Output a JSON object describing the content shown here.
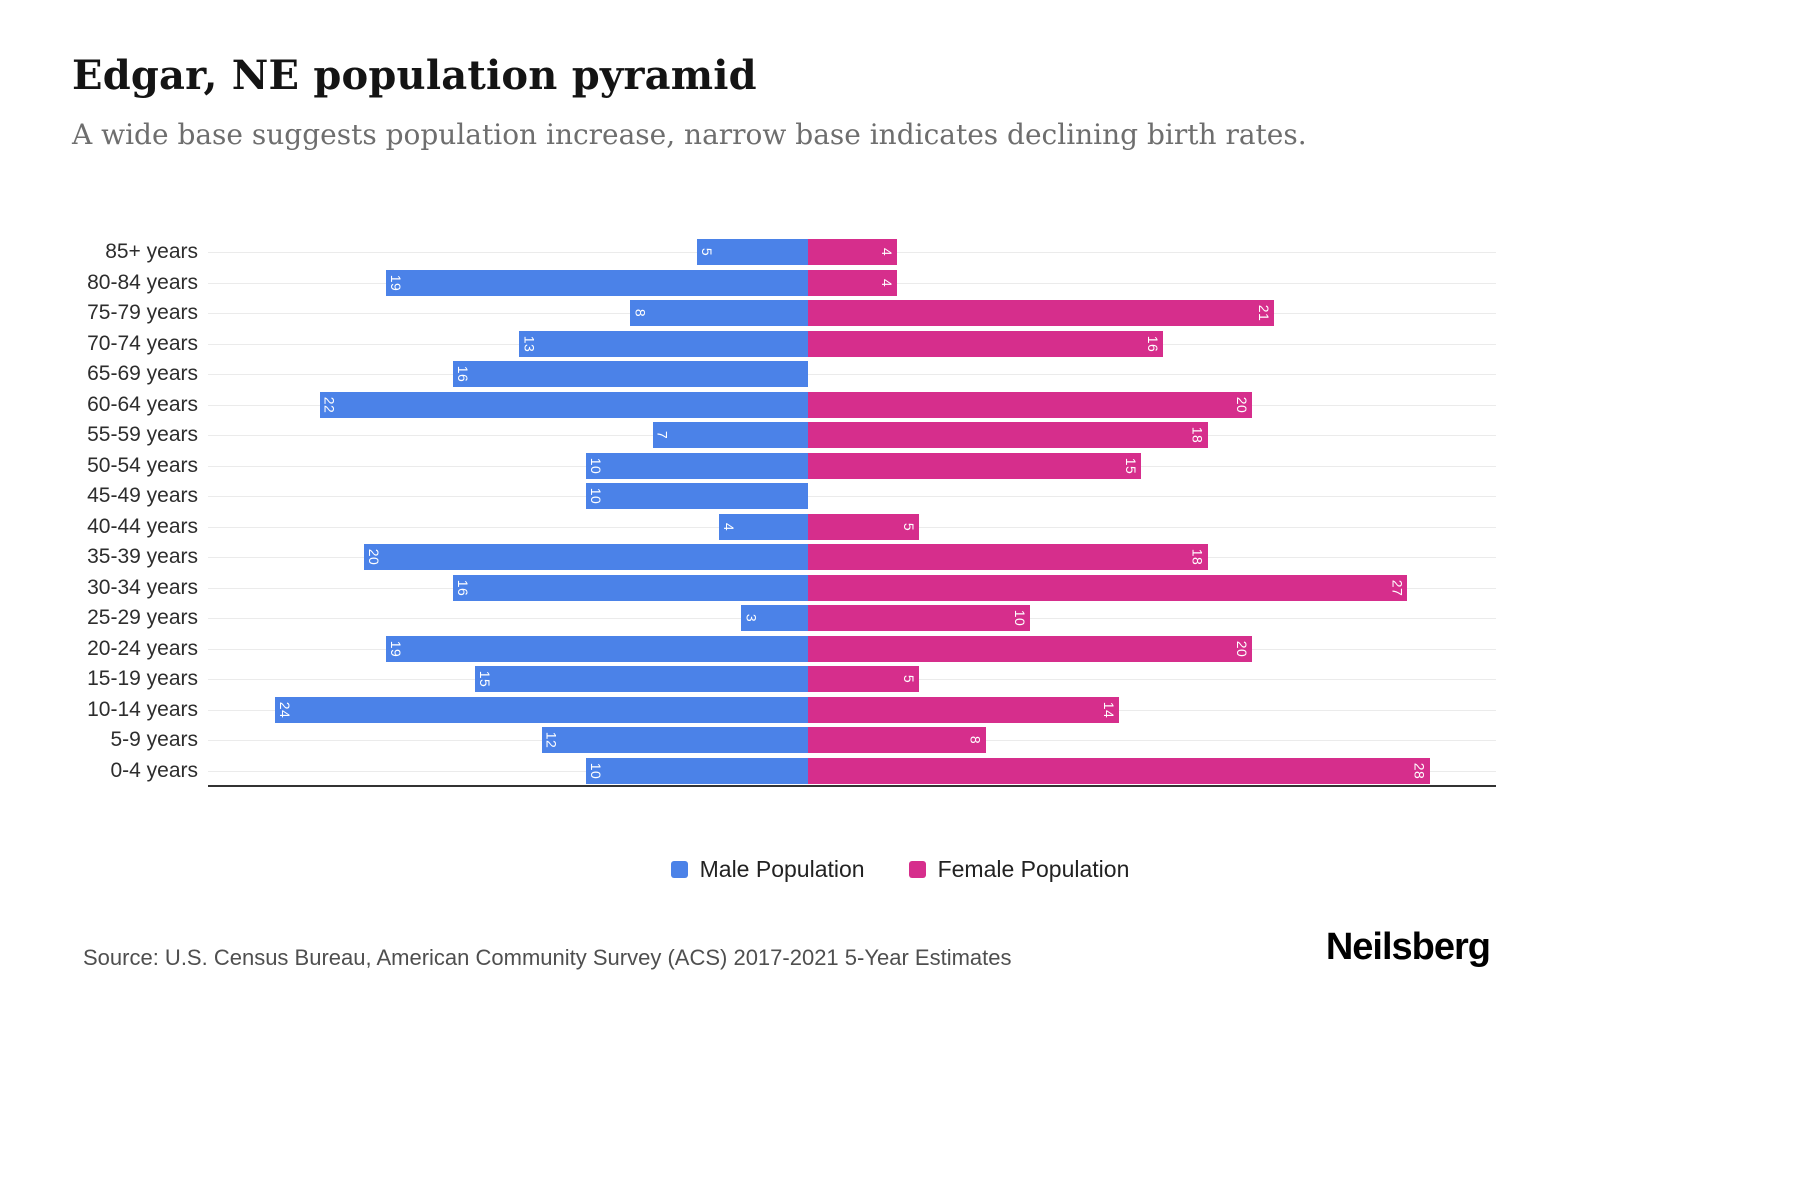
{
  "title": "Edgar, NE population pyramid",
  "subtitle": "A wide base suggests population increase, narrow base indicates declining birth rates.",
  "source": "Source: U.S. Census Bureau, American Community Survey (ACS) 2017-2021 5-Year Estimates",
  "logo": "Neilsberg",
  "legend": {
    "male": "Male Population",
    "female": "Female Population"
  },
  "colors": {
    "male": "#4b82e8",
    "female": "#d62e8c",
    "grid": "#ebebeb",
    "axis": "#333333"
  },
  "chart_data": {
    "type": "bar",
    "variant": "population-pyramid",
    "title": "Edgar, NE population pyramid",
    "categories": [
      "85+ years",
      "80-84 years",
      "75-79 years",
      "70-74 years",
      "65-69 years",
      "60-64 years",
      "55-59 years",
      "50-54 years",
      "45-49 years",
      "40-44 years",
      "35-39 years",
      "30-34 years",
      "25-29 years",
      "20-24 years",
      "15-19 years",
      "10-14 years",
      "5-9 years",
      "0-4 years"
    ],
    "series": [
      {
        "name": "Male Population",
        "side": "left",
        "values": [
          5,
          19,
          8,
          13,
          16,
          22,
          7,
          10,
          10,
          4,
          20,
          16,
          3,
          19,
          15,
          24,
          12,
          10
        ]
      },
      {
        "name": "Female Population",
        "side": "right",
        "values": [
          4,
          4,
          21,
          16,
          0,
          20,
          18,
          15,
          0,
          5,
          18,
          27,
          10,
          20,
          5,
          14,
          8,
          28
        ]
      }
    ],
    "value_labels": "inside-bar-end, rotated 90deg, white",
    "xlim_each_side": [
      0,
      30
    ],
    "grid": "horizontal rows, light gray",
    "legend_position": "bottom-center"
  }
}
